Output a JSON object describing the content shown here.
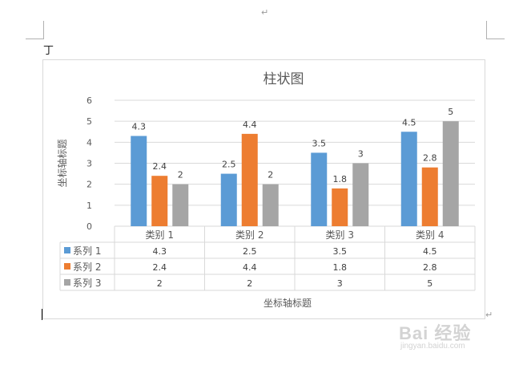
{
  "document": {
    "paragraph_mark_top": "↵",
    "paragraph_mark_bottom": "↵",
    "cursor_glyph": "丁"
  },
  "watermark": {
    "brand_text": "Bai 经验",
    "url": "jingyan.baidu.com"
  },
  "chart_data": {
    "type": "bar",
    "title": "柱状图",
    "xlabel": "坐标轴标题",
    "ylabel": "坐标轴标题",
    "categories": [
      "类别 1",
      "类别 2",
      "类别 3",
      "类别 4"
    ],
    "series": [
      {
        "name": "系列 1",
        "values": [
          4.3,
          2.5,
          3.5,
          4.5
        ],
        "color": "#5b9bd5"
      },
      {
        "name": "系列 2",
        "values": [
          2.4,
          4.4,
          1.8,
          2.8
        ],
        "color": "#ed7d31"
      },
      {
        "name": "系列 3",
        "values": [
          2,
          2,
          3,
          5
        ],
        "color": "#a5a5a5"
      }
    ],
    "ylim": [
      0,
      6
    ],
    "yticks": [
      0,
      1,
      2,
      3,
      4,
      5,
      6
    ],
    "grid": true,
    "data_labels": true,
    "data_table": true,
    "legend": "in-data-table"
  }
}
